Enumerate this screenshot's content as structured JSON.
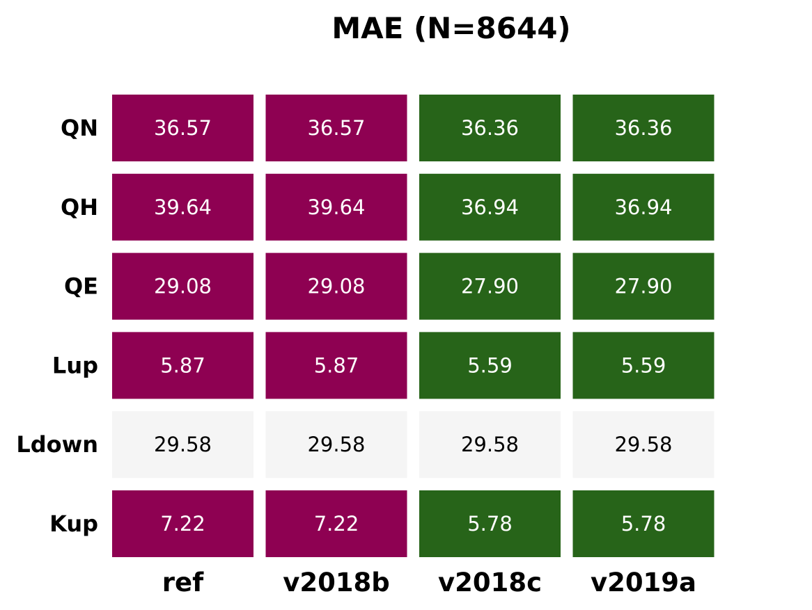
{
  "chart_data": {
    "type": "heatmap",
    "title": "MAE (N=8644)",
    "rows": [
      "QN",
      "QH",
      "QE",
      "Lup",
      "Ldown",
      "Kup"
    ],
    "columns": [
      "ref",
      "v2018b",
      "v2018c",
      "v2019a"
    ],
    "values": [
      [
        36.57,
        36.57,
        36.36,
        36.36
      ],
      [
        39.64,
        39.64,
        36.94,
        36.94
      ],
      [
        29.08,
        29.08,
        27.9,
        27.9
      ],
      [
        5.87,
        5.87,
        5.59,
        5.59
      ],
      [
        29.58,
        29.58,
        29.58,
        29.58
      ],
      [
        7.22,
        7.22,
        5.78,
        5.78
      ]
    ],
    "value_labels": [
      [
        "36.57",
        "36.57",
        "36.36",
        "36.36"
      ],
      [
        "39.64",
        "39.64",
        "36.94",
        "36.94"
      ],
      [
        "29.08",
        "29.08",
        "27.90",
        "27.90"
      ],
      [
        "5.87",
        "5.87",
        "5.59",
        "5.59"
      ],
      [
        "29.58",
        "29.58",
        "29.58",
        "29.58"
      ],
      [
        "7.22",
        "7.22",
        "5.78",
        "5.78"
      ]
    ],
    "colors": {
      "worse": "#8e0152",
      "better": "#276419",
      "equal": "#f5f5f5",
      "text_on_dark": "#ffffff",
      "text_on_light": "#000000"
    }
  }
}
